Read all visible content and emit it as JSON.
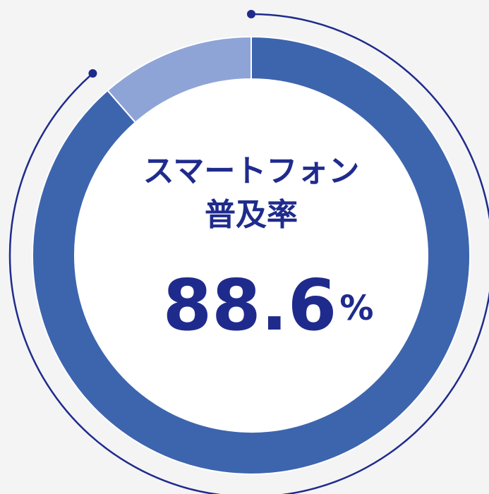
{
  "chart_data": {
    "type": "donut",
    "title": [
      "スマートフォン",
      "普及率"
    ],
    "categories": [
      null,
      null
    ],
    "values": [
      88.6,
      11.4
    ],
    "value_labels": [
      "88.6%",
      null
    ],
    "colors": [
      "#3d65ae",
      "#8fa4d6"
    ],
    "accent_color": "#1f2b8c"
  }
}
